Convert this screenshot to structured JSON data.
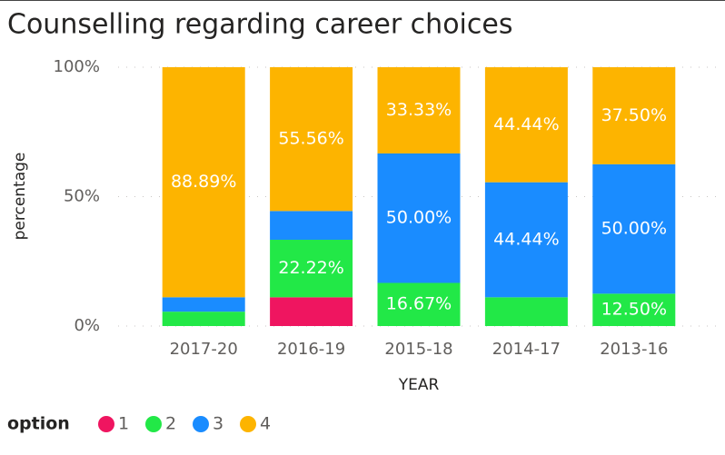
{
  "chart_data": {
    "type": "stacked_bar_100",
    "title": "Counselling regarding career choices",
    "x_label": "YEAR",
    "y_label": "percentage",
    "legend_title": "option",
    "categories": [
      "2017-20",
      "2016-19",
      "2015-18",
      "2014-17",
      "2013-16"
    ],
    "series": [
      {
        "name": "1",
        "color": "#ef1560",
        "values": [
          null,
          11.11,
          null,
          null,
          null
        ],
        "value_labels": [
          null,
          null,
          null,
          null,
          null
        ]
      },
      {
        "name": "2",
        "color": "#22e847",
        "values": [
          5.56,
          22.22,
          16.67,
          11.11,
          12.5
        ],
        "value_labels": [
          null,
          "22.22%",
          "16.67%",
          null,
          "12.50%"
        ]
      },
      {
        "name": "3",
        "color": "#1a8cff",
        "values": [
          5.56,
          11.11,
          50,
          44.44,
          50
        ],
        "value_labels": [
          null,
          null,
          "50.00%",
          "44.44%",
          "50.00%"
        ]
      },
      {
        "name": "4",
        "color": "#fdb400",
        "values": [
          88.89,
          55.56,
          33.33,
          44.44,
          37.5
        ],
        "value_labels": [
          "88.89%",
          "55.56%",
          "33.33%",
          "44.44%",
          "37.50%"
        ]
      }
    ],
    "ylim": [
      0,
      100
    ],
    "yticks": [
      {
        "value": 0,
        "label": "0%"
      },
      {
        "value": 50,
        "label": "50%"
      },
      {
        "value": 100,
        "label": "100%"
      }
    ],
    "grid": true,
    "legend": "bottom-left"
  }
}
